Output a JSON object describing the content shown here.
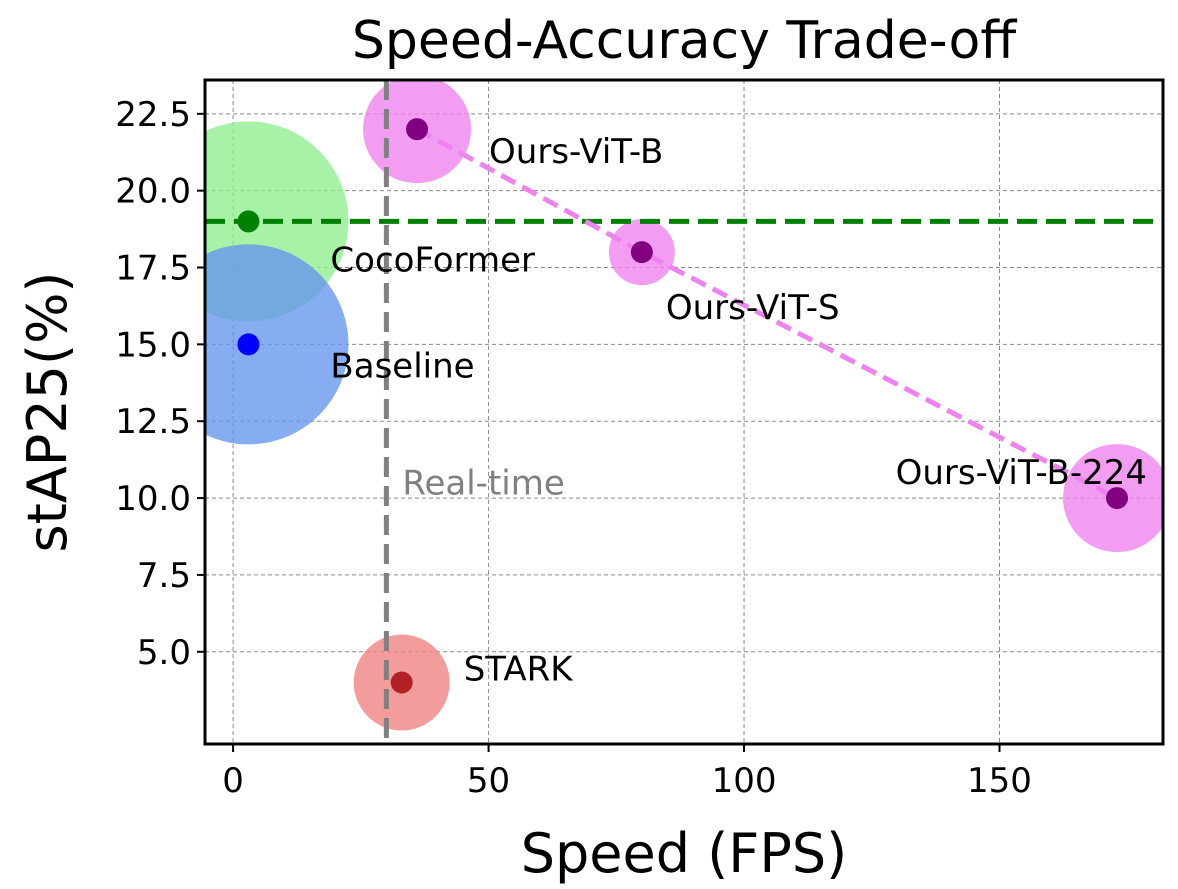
{
  "chart_data": {
    "type": "scatter",
    "title": "Speed-Accuracy Trade-off",
    "xlabel": "Speed (FPS)",
    "ylabel": "stAP25(%)",
    "xlim": [
      -5.5,
      182
    ],
    "ylim": [
      2.0,
      23.6
    ],
    "xticks": [
      0,
      50,
      100,
      150
    ],
    "yticks": [
      5.0,
      7.5,
      10.0,
      12.5,
      15.0,
      17.5,
      20.0,
      22.5
    ],
    "grid": true,
    "points": [
      {
        "label": "Ours-ViT-B",
        "x": 36,
        "y": 22.0,
        "bubble_color": "#ee82ee",
        "dot_color": "#800080",
        "bubble_size": 54
      },
      {
        "label": "CocoFormer",
        "x": 3,
        "y": 19.0,
        "bubble_color": "#90ee90",
        "dot_color": "#008000",
        "bubble_size": 100
      },
      {
        "label": "Ours-ViT-S",
        "x": 80,
        "y": 18.0,
        "bubble_color": "#ee82ee",
        "dot_color": "#800080",
        "bubble_size": 33
      },
      {
        "label": "Baseline",
        "x": 3,
        "y": 15.0,
        "bubble_color": "#6495ed",
        "dot_color": "#0000ff",
        "bubble_size": 100
      },
      {
        "label": "Ours-ViT-B-224",
        "x": 173,
        "y": 10.0,
        "bubble_color": "#ee82ee",
        "dot_color": "#800080",
        "bubble_size": 54
      },
      {
        "label": "STARK",
        "x": 33,
        "y": 4.0,
        "bubble_color": "#f08080",
        "dot_color": "#b22222",
        "bubble_size": 48
      }
    ],
    "ours_line": {
      "x": [
        36,
        80,
        173
      ],
      "y": [
        22.0,
        18.0,
        10.0
      ],
      "color": "#ee82ee",
      "style": "dashed"
    },
    "reference_lines": [
      {
        "orientation": "horizontal",
        "value": 19.0,
        "color": "#008000",
        "style": "dashed"
      },
      {
        "orientation": "vertical",
        "value": 30,
        "color": "#808080",
        "style": "dashed",
        "label": "Real-time"
      }
    ]
  }
}
